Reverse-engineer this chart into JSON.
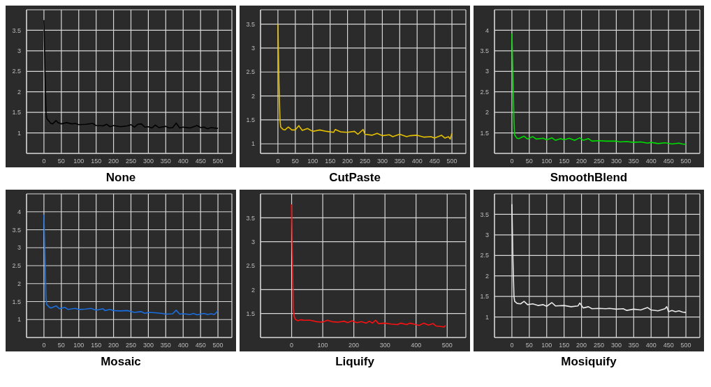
{
  "chart_data": [
    {
      "type": "line",
      "title": "None",
      "color": "#000000",
      "grid": true,
      "xlim": [
        -50,
        540
      ],
      "xticks": [
        0,
        50,
        100,
        150,
        200,
        250,
        300,
        350,
        400,
        450,
        500
      ],
      "ylim": [
        0.5,
        4
      ],
      "yticks": [
        1,
        1.5,
        2,
        2.5,
        3,
        3.5
      ],
      "x": [
        0,
        3,
        6,
        8,
        15,
        20,
        25,
        35,
        40,
        50,
        65,
        80,
        90,
        100,
        120,
        140,
        150,
        170,
        180,
        190,
        200,
        220,
        240,
        250,
        260,
        270,
        280,
        290,
        300,
        310,
        320,
        330,
        350,
        360,
        370,
        380,
        390,
        400,
        420,
        440,
        450,
        460,
        470,
        480,
        500
      ],
      "values": [
        3.75,
        2.5,
        1.5,
        1.35,
        1.28,
        1.23,
        1.22,
        1.3,
        1.25,
        1.22,
        1.25,
        1.22,
        1.23,
        1.2,
        1.21,
        1.23,
        1.18,
        1.17,
        1.21,
        1.15,
        1.18,
        1.15,
        1.17,
        1.2,
        1.14,
        1.21,
        1.22,
        1.14,
        1.15,
        1.12,
        1.19,
        1.13,
        1.16,
        1.12,
        1.13,
        1.24,
        1.12,
        1.14,
        1.12,
        1.18,
        1.13,
        1.14,
        1.1,
        1.13,
        1.11
      ]
    },
    {
      "type": "line",
      "title": "CutPaste",
      "color": "#e6c000",
      "grid": true,
      "xlim": [
        -50,
        540
      ],
      "xticks": [
        0,
        50,
        100,
        150,
        200,
        250,
        300,
        350,
        400,
        450,
        500
      ],
      "ylim": [
        0.8,
        3.8
      ],
      "yticks": [
        1,
        1.5,
        2,
        2.5,
        3,
        3.5
      ],
      "x": [
        0,
        3,
        6,
        8,
        15,
        20,
        30,
        40,
        50,
        60,
        70,
        85,
        100,
        120,
        140,
        160,
        165,
        180,
        200,
        220,
        230,
        245,
        250,
        270,
        285,
        300,
        320,
        330,
        350,
        370,
        380,
        400,
        420,
        440,
        450,
        470,
        480,
        490,
        495,
        500
      ],
      "values": [
        3.5,
        2.3,
        1.5,
        1.35,
        1.3,
        1.29,
        1.35,
        1.29,
        1.29,
        1.38,
        1.28,
        1.32,
        1.26,
        1.29,
        1.26,
        1.24,
        1.3,
        1.25,
        1.24,
        1.26,
        1.2,
        1.3,
        1.2,
        1.18,
        1.22,
        1.17,
        1.19,
        1.15,
        1.2,
        1.15,
        1.17,
        1.18,
        1.14,
        1.15,
        1.12,
        1.18,
        1.12,
        1.15,
        1.1,
        1.22
      ]
    },
    {
      "type": "line",
      "title": "SmoothBlend",
      "color": "#00dd00",
      "grid": true,
      "xlim": [
        -50,
        540
      ],
      "xticks": [
        0,
        50,
        100,
        150,
        200,
        250,
        300,
        350,
        400,
        450,
        500
      ],
      "ylim": [
        1,
        4.5
      ],
      "yticks": [
        1.5,
        2,
        2.5,
        3,
        3.5,
        4
      ],
      "x": [
        0,
        3,
        6,
        8,
        12,
        15,
        20,
        35,
        45,
        60,
        70,
        90,
        100,
        115,
        125,
        140,
        150,
        165,
        180,
        195,
        205,
        220,
        230,
        250,
        270,
        300,
        310,
        330,
        350,
        370,
        390,
        400,
        420,
        440,
        460,
        480,
        490,
        500
      ],
      "values": [
        3.92,
        3.0,
        1.8,
        1.45,
        1.4,
        1.37,
        1.36,
        1.42,
        1.35,
        1.41,
        1.35,
        1.37,
        1.33,
        1.38,
        1.32,
        1.36,
        1.33,
        1.37,
        1.32,
        1.38,
        1.32,
        1.36,
        1.3,
        1.31,
        1.3,
        1.3,
        1.28,
        1.29,
        1.27,
        1.28,
        1.25,
        1.27,
        1.24,
        1.26,
        1.23,
        1.25,
        1.23,
        1.22
      ]
    },
    {
      "type": "line",
      "title": "Mosaic",
      "color": "#1a6fe0",
      "grid": true,
      "xlim": [
        -50,
        540
      ],
      "xticks": [
        0,
        50,
        100,
        150,
        200,
        250,
        300,
        350,
        400,
        450,
        500
      ],
      "ylim": [
        0.5,
        4.5
      ],
      "yticks": [
        1,
        1.5,
        2,
        2.5,
        3,
        3.5,
        4
      ],
      "x": [
        0,
        3,
        6,
        8,
        15,
        20,
        35,
        45,
        60,
        70,
        90,
        100,
        120,
        135,
        150,
        170,
        175,
        190,
        200,
        220,
        240,
        260,
        280,
        290,
        300,
        320,
        340,
        350,
        370,
        380,
        390,
        400,
        420,
        430,
        440,
        460,
        470,
        480,
        490,
        500
      ],
      "values": [
        3.92,
        2.8,
        1.6,
        1.42,
        1.35,
        1.32,
        1.38,
        1.3,
        1.34,
        1.28,
        1.31,
        1.28,
        1.29,
        1.31,
        1.26,
        1.3,
        1.25,
        1.28,
        1.25,
        1.24,
        1.25,
        1.2,
        1.22,
        1.17,
        1.2,
        1.19,
        1.17,
        1.15,
        1.16,
        1.26,
        1.15,
        1.16,
        1.14,
        1.17,
        1.13,
        1.17,
        1.14,
        1.16,
        1.14,
        1.24
      ]
    },
    {
      "type": "line",
      "title": "Liquify",
      "color": "#ff1010",
      "grid": true,
      "xlim": [
        -100,
        560
      ],
      "xticks": [
        0,
        100,
        200,
        300,
        400,
        500
      ],
      "ylim": [
        1,
        4
      ],
      "yticks": [
        1.5,
        2,
        2.5,
        3,
        3.5
      ],
      "x": [
        0,
        3,
        6,
        8,
        12,
        20,
        30,
        40,
        60,
        80,
        100,
        115,
        130,
        150,
        170,
        180,
        195,
        210,
        225,
        240,
        250,
        260,
        270,
        280,
        300,
        320,
        340,
        350,
        370,
        380,
        400,
        410,
        425,
        440,
        455,
        465,
        480,
        490,
        495
      ],
      "values": [
        3.78,
        2.5,
        1.6,
        1.45,
        1.38,
        1.35,
        1.37,
        1.36,
        1.36,
        1.33,
        1.32,
        1.36,
        1.33,
        1.32,
        1.34,
        1.31,
        1.35,
        1.31,
        1.33,
        1.3,
        1.34,
        1.3,
        1.36,
        1.29,
        1.3,
        1.28,
        1.27,
        1.3,
        1.27,
        1.3,
        1.27,
        1.25,
        1.3,
        1.26,
        1.29,
        1.24,
        1.23,
        1.22,
        1.25
      ]
    },
    {
      "type": "line",
      "title": "Mosiquify",
      "color": "#e8e8e8",
      "grid": true,
      "xlim": [
        -50,
        540
      ],
      "xticks": [
        0,
        50,
        100,
        150,
        200,
        250,
        300,
        350,
        400,
        450,
        500
      ],
      "ylim": [
        0.5,
        4
      ],
      "yticks": [
        1,
        1.5,
        2,
        2.5,
        3,
        3.5
      ],
      "x": [
        0,
        3,
        6,
        8,
        15,
        25,
        35,
        45,
        60,
        75,
        90,
        100,
        115,
        125,
        150,
        170,
        190,
        195,
        205,
        220,
        230,
        250,
        270,
        280,
        300,
        320,
        330,
        350,
        370,
        390,
        400,
        420,
        440,
        445,
        450,
        460,
        470,
        480,
        490,
        500
      ],
      "values": [
        3.75,
        2.4,
        1.5,
        1.38,
        1.33,
        1.32,
        1.38,
        1.3,
        1.32,
        1.28,
        1.3,
        1.26,
        1.35,
        1.27,
        1.28,
        1.25,
        1.27,
        1.34,
        1.22,
        1.25,
        1.2,
        1.21,
        1.2,
        1.21,
        1.19,
        1.2,
        1.16,
        1.19,
        1.17,
        1.23,
        1.17,
        1.15,
        1.2,
        1.25,
        1.13,
        1.16,
        1.13,
        1.15,
        1.12,
        1.11
      ]
    }
  ]
}
